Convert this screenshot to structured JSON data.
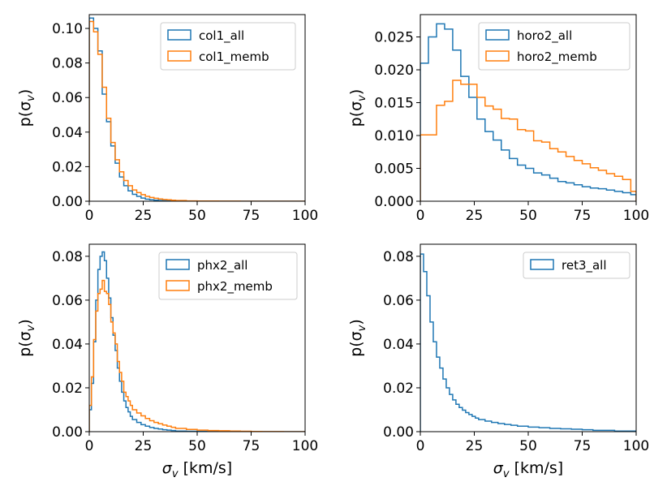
{
  "colors": {
    "all": "#1f77b4",
    "memb": "#ff7f0e"
  },
  "chart_data": [
    {
      "type": "histogram",
      "id": "col1",
      "xlabel": "",
      "ylabel": "p(σv)",
      "xlim": [
        0,
        100
      ],
      "ylim": [
        0,
        0.108
      ],
      "xticks": [
        0,
        25,
        50,
        75,
        100
      ],
      "yticks": [
        0,
        0.02,
        0.04,
        0.06,
        0.08,
        0.1
      ],
      "ytick_labels": [
        "0.00",
        "0.02",
        "0.04",
        "0.06",
        "0.08",
        "0.10"
      ],
      "legend_loc": "upper right",
      "bin_edges": [
        0,
        2,
        4,
        6,
        8,
        10,
        12,
        14,
        16,
        18,
        20,
        22,
        24,
        26,
        28,
        30,
        32,
        34,
        36,
        38,
        40,
        45,
        50,
        60,
        70,
        80,
        90,
        100
      ],
      "series": [
        {
          "name": "col1_all",
          "color_key": "all",
          "values": [
            0.106,
            0.1,
            0.087,
            0.062,
            0.046,
            0.032,
            0.022,
            0.014,
            0.009,
            0.006,
            0.004,
            0.0028,
            0.0018,
            0.0012,
            0.0008,
            0.0006,
            0.0004,
            0.0003,
            0.0002,
            0.00015,
            0.0001,
            5e-05,
            3e-05,
            1e-05,
            0,
            0,
            0
          ]
        },
        {
          "name": "col1_memb",
          "color_key": "memb",
          "values": [
            0.104,
            0.098,
            0.085,
            0.066,
            0.048,
            0.034,
            0.024,
            0.017,
            0.012,
            0.009,
            0.0065,
            0.005,
            0.0038,
            0.0028,
            0.0022,
            0.0017,
            0.0013,
            0.001,
            0.0008,
            0.0006,
            0.0004,
            0.0002,
            0.0001,
            5e-05,
            2e-05,
            1e-05,
            0
          ]
        }
      ]
    },
    {
      "type": "histogram",
      "id": "horo2",
      "xlabel": "",
      "ylabel": "p(σv)",
      "xlim": [
        0,
        100
      ],
      "ylim": [
        0,
        0.0284
      ],
      "xticks": [
        0,
        25,
        50,
        75,
        100
      ],
      "yticks": [
        0,
        0.005,
        0.01,
        0.015,
        0.02,
        0.025
      ],
      "ytick_labels": [
        "0.000",
        "0.005",
        "0.010",
        "0.015",
        "0.020",
        "0.025"
      ],
      "legend_loc": "upper right",
      "bin_edges": [
        0,
        3.75,
        7.5,
        11.25,
        15,
        18.75,
        22.5,
        26.25,
        30,
        33.75,
        37.5,
        41.25,
        45,
        48.75,
        52.5,
        56.25,
        60,
        63.75,
        67.5,
        71.25,
        75,
        78.75,
        82.5,
        86.25,
        90,
        93.75,
        97.5,
        100
      ],
      "series": [
        {
          "name": "horo2_all",
          "color_key": "all",
          "values": [
            0.021,
            0.025,
            0.027,
            0.0262,
            0.023,
            0.019,
            0.0158,
            0.0125,
            0.0106,
            0.0093,
            0.0078,
            0.0065,
            0.0055,
            0.005,
            0.0043,
            0.004,
            0.0035,
            0.003,
            0.0028,
            0.0025,
            0.0022,
            0.002,
            0.0019,
            0.0017,
            0.0015,
            0.0013,
            0.001
          ]
        },
        {
          "name": "horo2_memb",
          "color_key": "memb",
          "values": [
            0.0101,
            0.0101,
            0.0146,
            0.0152,
            0.0184,
            0.0178,
            0.0178,
            0.0158,
            0.0145,
            0.014,
            0.0126,
            0.0125,
            0.0109,
            0.0107,
            0.0092,
            0.009,
            0.008,
            0.0075,
            0.0068,
            0.0062,
            0.0057,
            0.0051,
            0.0047,
            0.0042,
            0.0038,
            0.0033,
            0.0015
          ]
        }
      ]
    },
    {
      "type": "histogram",
      "id": "phx2",
      "xlabel": "σv [km/s]",
      "ylabel": "p(σv)",
      "xlim": [
        0,
        100
      ],
      "ylim": [
        0,
        0.0855
      ],
      "xticks": [
        0,
        25,
        50,
        75,
        100
      ],
      "yticks": [
        0,
        0.02,
        0.04,
        0.06,
        0.08
      ],
      "ytick_labels": [
        "0.00",
        "0.02",
        "0.04",
        "0.06",
        "0.08"
      ],
      "legend_loc": "upper right",
      "bin_edges": [
        0,
        1,
        2,
        3,
        4,
        5,
        6,
        7,
        8,
        9,
        10,
        11,
        12,
        13,
        14,
        15,
        16,
        17,
        18,
        19,
        20,
        22,
        24,
        26,
        28,
        30,
        32,
        34,
        36,
        38,
        40,
        45,
        50,
        55,
        60,
        65,
        70,
        75,
        80,
        90,
        100
      ],
      "series": [
        {
          "name": "phx2_all",
          "color_key": "all",
          "values": [
            0.01,
            0.022,
            0.041,
            0.06,
            0.074,
            0.08,
            0.082,
            0.078,
            0.07,
            0.061,
            0.052,
            0.044,
            0.037,
            0.029,
            0.023,
            0.018,
            0.014,
            0.011,
            0.009,
            0.007,
            0.0055,
            0.0042,
            0.0032,
            0.0025,
            0.0019,
            0.0015,
            0.0012,
            0.0009,
            0.0007,
            0.0005,
            0.0003,
            0.0002,
            0.00012,
            8e-05,
            5e-05,
            3e-05,
            2e-05,
            1e-05,
            0,
            0
          ]
        },
        {
          "name": "phx2_memb",
          "color_key": "memb",
          "values": [
            0.012,
            0.025,
            0.042,
            0.055,
            0.063,
            0.065,
            0.069,
            0.064,
            0.063,
            0.058,
            0.05,
            0.045,
            0.04,
            0.032,
            0.027,
            0.023,
            0.018,
            0.016,
            0.014,
            0.012,
            0.01,
            0.0085,
            0.0072,
            0.006,
            0.005,
            0.0042,
            0.0036,
            0.003,
            0.0025,
            0.002,
            0.0015,
            0.001,
            0.0007,
            0.0005,
            0.0004,
            0.0003,
            0.0002,
            0.0001,
            5e-05,
            0
          ]
        }
      ]
    },
    {
      "type": "histogram",
      "id": "ret3",
      "xlabel": "σv [km/s]",
      "ylabel": "p(σv)",
      "xlim": [
        0,
        100
      ],
      "ylim": [
        0,
        0.0855
      ],
      "xticks": [
        0,
        25,
        50,
        75,
        100
      ],
      "yticks": [
        0,
        0.02,
        0.04,
        0.06,
        0.08
      ],
      "ytick_labels": [
        "0.00",
        "0.02",
        "0.04",
        "0.06",
        "0.08"
      ],
      "legend_loc": "upper right",
      "bin_edges": [
        0,
        1.5,
        3,
        4.5,
        6,
        7.5,
        9,
        10.5,
        12,
        13.5,
        15,
        16.5,
        18,
        19.5,
        21,
        22.5,
        24,
        25.5,
        27,
        30,
        33,
        36,
        39,
        42,
        45,
        50,
        55,
        60,
        65,
        70,
        75,
        80,
        90,
        100
      ],
      "series": [
        {
          "name": "ret3_all",
          "color_key": "all",
          "values": [
            0.081,
            0.073,
            0.062,
            0.05,
            0.041,
            0.034,
            0.029,
            0.024,
            0.02,
            0.017,
            0.0145,
            0.0125,
            0.011,
            0.0098,
            0.0087,
            0.0078,
            0.007,
            0.0062,
            0.0055,
            0.0048,
            0.0042,
            0.0037,
            0.0033,
            0.0029,
            0.0025,
            0.0021,
            0.0018,
            0.0015,
            0.0013,
            0.0011,
            0.0009,
            0.0006,
            0.0003
          ]
        }
      ]
    }
  ]
}
